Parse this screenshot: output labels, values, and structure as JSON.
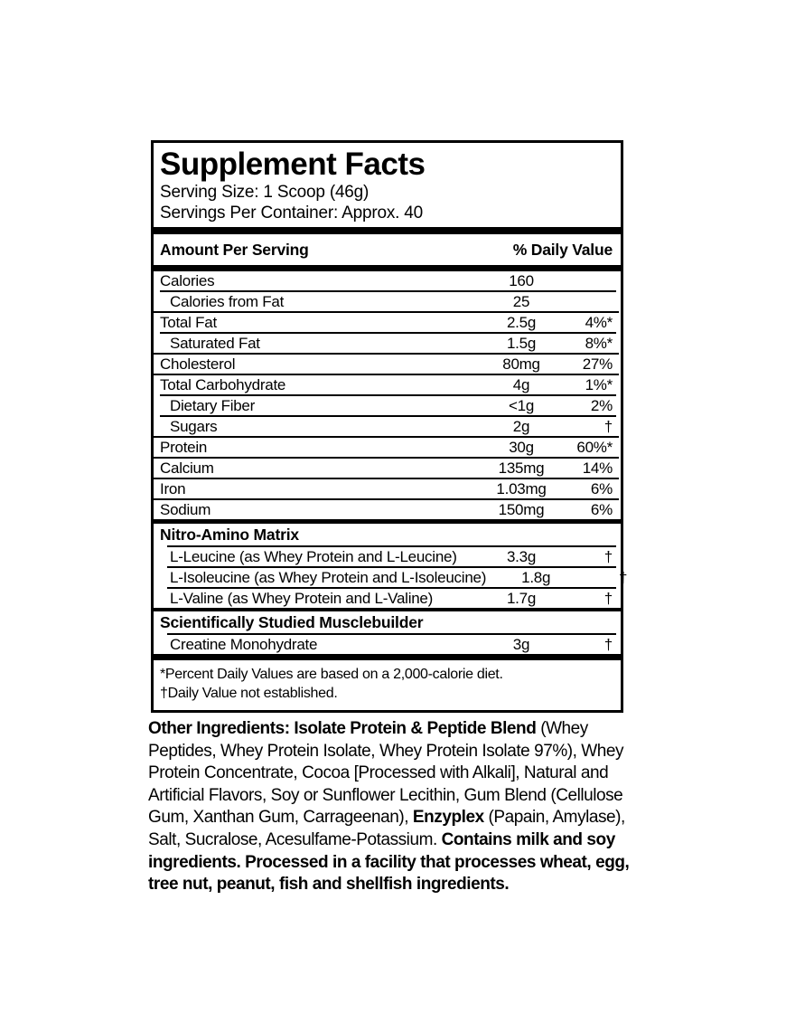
{
  "colors": {
    "text": "#000000",
    "background": "#ffffff"
  },
  "label": {
    "title": "Supplement Facts",
    "serving_size": "Serving Size: 1 Scoop (46g)",
    "servings_per_container": "Servings Per Container: Approx. 40",
    "header": {
      "amount": "Amount Per Serving",
      "daily_value": "% Daily Value"
    },
    "rows": [
      {
        "label": "Calories",
        "amount": "160",
        "dv": "",
        "indent": false,
        "line": "none"
      },
      {
        "label": "Calories from Fat",
        "amount": "25",
        "dv": "",
        "indent": true,
        "line": "pad"
      },
      {
        "label": "Total Fat",
        "amount": "2.5g",
        "dv": "4%*",
        "indent": false,
        "line": "full"
      },
      {
        "label": "Saturated Fat",
        "amount": "1.5g",
        "dv": "8%*",
        "indent": true,
        "line": "pad"
      },
      {
        "label": "Cholesterol",
        "amount": "80mg",
        "dv": "27%",
        "indent": false,
        "line": "full"
      },
      {
        "label": "Total Carbohydrate",
        "amount": "4g",
        "dv": "1%*",
        "indent": false,
        "line": "full"
      },
      {
        "label": "Dietary Fiber",
        "amount": "<1g",
        "dv": "2%",
        "indent": true,
        "line": "pad"
      },
      {
        "label": "Sugars",
        "amount": "2g",
        "dv": "†",
        "indent": true,
        "line": "pad"
      },
      {
        "label": "Protein",
        "amount": "30g",
        "dv": "60%*",
        "indent": false,
        "line": "full"
      },
      {
        "label": "Calcium",
        "amount": "135mg",
        "dv": "14%",
        "indent": false,
        "line": "full"
      },
      {
        "label": "Iron",
        "amount": "1.03mg",
        "dv": "6%",
        "indent": false,
        "line": "full"
      },
      {
        "label": "Sodium",
        "amount": "150mg",
        "dv": "6%",
        "indent": false,
        "line": "full"
      },
      {
        "section": true,
        "label": "Nitro-Amino Matrix",
        "bar": "bar5"
      },
      {
        "label": "L-Leucine (as Whey Protein and L-Leucine)",
        "amount": "3.3g",
        "dv": "†",
        "indent": true,
        "line": "none"
      },
      {
        "label": "L-Isoleucine (as Whey Protein and L-Isoleucine)",
        "amount": "1.8g",
        "dv": "†",
        "indent": true,
        "line": "pad2"
      },
      {
        "label": "L-Valine (as Whey Protein and L-Valine)",
        "amount": "1.7g",
        "dv": "†",
        "indent": true,
        "line": "pad2"
      },
      {
        "section": true,
        "label": "Scientifically Studied Musclebuilder",
        "bar": "bar4"
      },
      {
        "label": "Creatine Monohydrate",
        "amount": "3g",
        "dv": "†",
        "indent": true,
        "line": "none"
      }
    ],
    "footnotes": [
      "*Percent Daily Values are based on a 2,000-calorie diet.",
      "†Daily Value not established."
    ]
  },
  "other_ingredients": {
    "segments": [
      {
        "text": "Other Ingredients: Isolate Protein & Peptide Blend",
        "bold": true
      },
      {
        "text": " (Whey Peptides, Whey Protein Isolate, Whey Protein Isolate 97%), Whey Protein Concentrate, Cocoa [Processed with Alkali], Natural and Artificial Flavors, Soy or Sunflower Lecithin, Gum Blend (Cellulose Gum, Xanthan Gum, Carrageenan), ",
        "bold": false
      },
      {
        "text": "Enzyplex",
        "bold": true
      },
      {
        "text": " (Papain, Amylase), Salt, Sucralose, Acesulfame-Potassium. ",
        "bold": false
      },
      {
        "text": "Contains milk and soy ingredients. Processed in a facility that processes wheat, egg, tree nut, peanut, fish and shellfish ingredients.",
        "bold": true
      }
    ]
  }
}
